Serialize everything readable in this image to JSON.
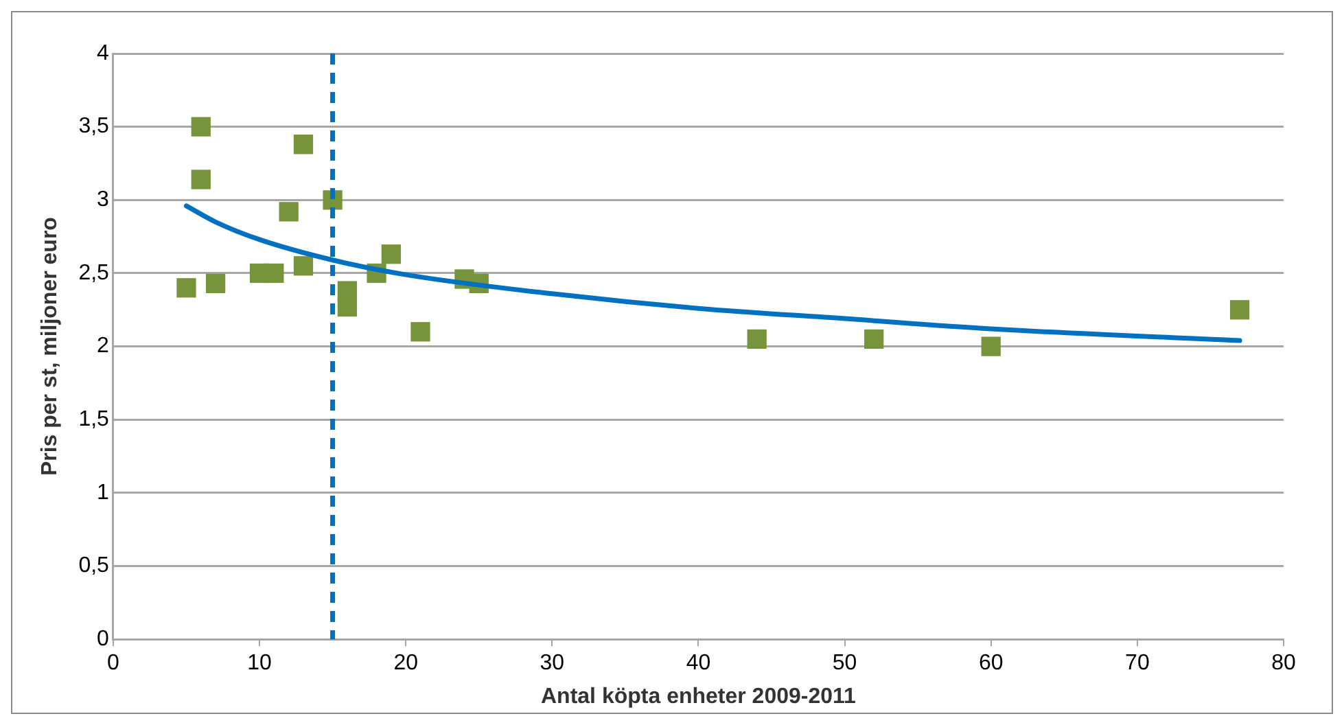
{
  "chart_data": {
    "type": "scatter",
    "xlabel": "Antal köpta enheter 2009-2011",
    "ylabel": "Pris per st, miljoner euro",
    "xlim": [
      0,
      80
    ],
    "xticks": [
      0,
      10,
      20,
      30,
      40,
      50,
      60,
      70,
      80
    ],
    "ylim": [
      0,
      4
    ],
    "yticks": [
      0,
      {
        "value": 0.5,
        "label": "0,5"
      },
      1,
      {
        "value": 1.5,
        "label": "1,5"
      },
      2,
      {
        "value": 2.5,
        "label": "2,5"
      },
      3,
      {
        "value": 3.5,
        "label": "3,5"
      },
      4
    ],
    "grid": "y",
    "legend": false,
    "marker": "square",
    "series": [
      {
        "color": "#77933c",
        "x": [
          5,
          6,
          6,
          7,
          10,
          11,
          12,
          13,
          13,
          15,
          16,
          16,
          18,
          19,
          21,
          24,
          25,
          44,
          52,
          60,
          77
        ],
        "values": [
          2.4,
          3.5,
          3.14,
          2.43,
          2.5,
          2.5,
          2.92,
          3.38,
          2.55,
          3.0,
          2.38,
          2.27,
          2.5,
          2.63,
          2.1,
          2.46,
          2.43,
          2.05,
          2.05,
          2.0,
          2.25
        ]
      },
      {
        "type": "line",
        "color": "#0070c0",
        "marker": "none",
        "line_style": "solid",
        "x": [
          5,
          7,
          10,
          15,
          20,
          30,
          40,
          50,
          60,
          77
        ],
        "values": [
          2.96,
          2.85,
          2.73,
          2.59,
          2.49,
          2.36,
          2.26,
          2.19,
          2.12,
          2.04
        ]
      }
    ],
    "ref_lines": [
      {
        "axis": "x",
        "value": 15,
        "color": "#0070c0",
        "line_style": "dashed"
      }
    ]
  }
}
